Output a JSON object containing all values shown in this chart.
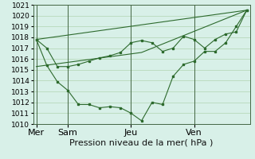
{
  "title": "Pression niveau de la mer( hPa )",
  "bg_color": "#d8f0e8",
  "grid_color": "#b0d4b0",
  "line_color": "#2d6a2d",
  "ylim": [
    1010,
    1021
  ],
  "yticks": [
    1010,
    1011,
    1012,
    1013,
    1014,
    1015,
    1016,
    1017,
    1018,
    1019,
    1020,
    1021
  ],
  "day_labels": [
    "Mer",
    "Sam",
    "Jeu",
    "Ven"
  ],
  "day_positions": [
    0,
    3,
    9,
    15
  ],
  "series1": [
    1017.8,
    1017.0,
    1015.3,
    1015.3,
    1015.5,
    1015.8,
    1016.1,
    1016.3,
    1016.6,
    1017.5,
    1017.7,
    1017.5,
    1016.7,
    1017.0,
    1018.1,
    1017.8,
    1017.0,
    1017.8,
    1018.3,
    1018.5,
    1020.5
  ],
  "series2": [
    1017.8,
    1015.4,
    1013.9,
    1013.1,
    1011.8,
    1011.8,
    1011.5,
    1011.6,
    1011.5,
    1011.0,
    1010.3,
    1012.0,
    1011.8,
    1014.4,
    1015.5,
    1015.8,
    1016.7,
    1016.7,
    1017.5,
    1019.0,
    1020.5
  ],
  "line_extra1": [
    [
      0,
      20
    ],
    [
      1017.8,
      1020.5
    ]
  ],
  "line_extra2": [
    [
      0,
      10,
      20
    ],
    [
      1015.3,
      1016.6,
      1020.5
    ]
  ],
  "num_points": 21,
  "xlabel_fontsize": 8,
  "tick_fontsize": 6.5
}
